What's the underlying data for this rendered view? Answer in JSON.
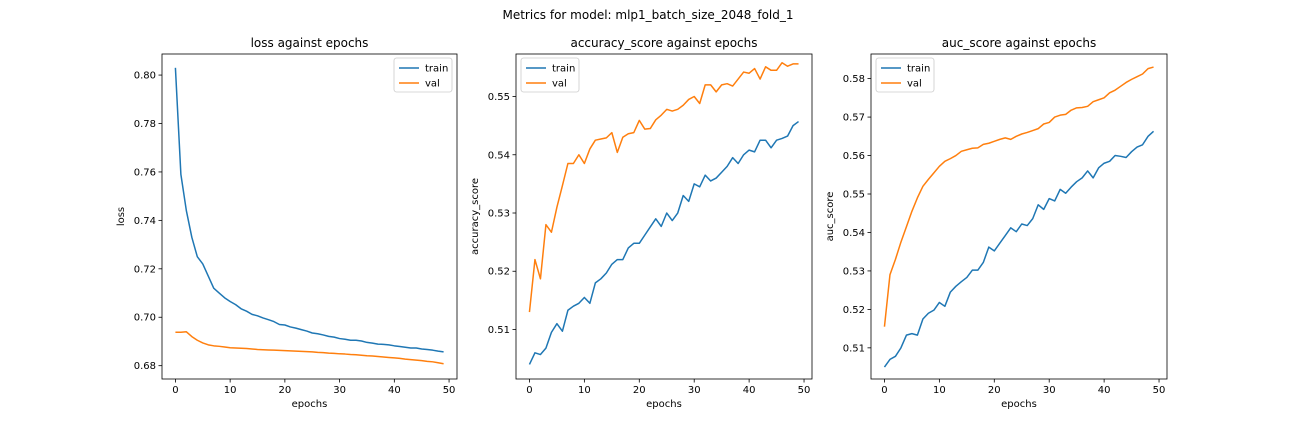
{
  "figure": {
    "suptitle": "Metrics for model: mlp1_batch_size_2048_fold_1"
  },
  "colors": {
    "train": "#1f77b4",
    "val": "#ff7f0e"
  },
  "chart_data": [
    {
      "type": "line",
      "title": "loss against epochs",
      "xlabel": "epochs",
      "ylabel": "loss",
      "xlim": [
        -2.45,
        51.45
      ],
      "ylim": [
        0.6745,
        0.8087
      ],
      "xticks": [
        0,
        10,
        20,
        30,
        40,
        50
      ],
      "xtick_labels": [
        "0",
        "10",
        "20",
        "30",
        "40",
        "50"
      ],
      "yticks": [
        0.68,
        0.7,
        0.72,
        0.74,
        0.76,
        0.78,
        0.8
      ],
      "ytick_labels": [
        "0.68",
        "0.70",
        "0.72",
        "0.74",
        "0.76",
        "0.78",
        "0.80"
      ],
      "legend": "upper-right",
      "x": [
        0,
        1,
        2,
        3,
        4,
        5,
        6,
        7,
        8,
        9,
        10,
        11,
        12,
        13,
        14,
        15,
        16,
        17,
        18,
        19,
        20,
        21,
        22,
        23,
        24,
        25,
        26,
        27,
        28,
        29,
        30,
        31,
        32,
        33,
        34,
        35,
        36,
        37,
        38,
        39,
        40,
        41,
        42,
        43,
        44,
        45,
        46,
        47,
        48,
        49
      ],
      "series": [
        {
          "name": "train",
          "values": [
            0.803,
            0.759,
            0.744,
            0.733,
            0.725,
            0.722,
            0.717,
            0.712,
            0.71,
            0.708,
            0.7065,
            0.7052,
            0.7035,
            0.7025,
            0.7012,
            0.7006,
            0.6997,
            0.699,
            0.6982,
            0.697,
            0.6968,
            0.696,
            0.6955,
            0.6949,
            0.6943,
            0.6935,
            0.6932,
            0.6927,
            0.6921,
            0.6918,
            0.6912,
            0.6909,
            0.6905,
            0.6905,
            0.6902,
            0.6896,
            0.6893,
            0.6889,
            0.6888,
            0.6886,
            0.6882,
            0.6879,
            0.6876,
            0.6873,
            0.6873,
            0.6869,
            0.6867,
            0.6864,
            0.686,
            0.6857
          ]
        },
        {
          "name": "val",
          "values": [
            0.6938,
            0.6938,
            0.694,
            0.692,
            0.6905,
            0.6894,
            0.6886,
            0.6882,
            0.688,
            0.6877,
            0.6874,
            0.6873,
            0.6872,
            0.6871,
            0.6869,
            0.6867,
            0.6866,
            0.6865,
            0.6864,
            0.6863,
            0.6862,
            0.6861,
            0.686,
            0.6859,
            0.6858,
            0.6857,
            0.6855,
            0.6854,
            0.6852,
            0.6851,
            0.6849,
            0.6848,
            0.6846,
            0.6845,
            0.6843,
            0.6841,
            0.684,
            0.6838,
            0.6836,
            0.6834,
            0.6832,
            0.683,
            0.6827,
            0.6825,
            0.6823,
            0.6821,
            0.6818,
            0.6816,
            0.6812,
            0.6808
          ]
        }
      ]
    },
    {
      "type": "line",
      "title": "accuracy_score against epochs",
      "xlabel": "epochs",
      "ylabel": "accuracy_score",
      "xlim": [
        -2.45,
        51.45
      ],
      "ylim": [
        0.5015,
        0.5573
      ],
      "xticks": [
        0,
        10,
        20,
        30,
        40,
        50
      ],
      "xtick_labels": [
        "0",
        "10",
        "20",
        "30",
        "40",
        "50"
      ],
      "yticks": [
        0.51,
        0.52,
        0.53,
        0.54,
        0.55
      ],
      "ytick_labels": [
        "0.51",
        "0.52",
        "0.53",
        "0.54",
        "0.55"
      ],
      "legend": "upper-left",
      "x": [
        0,
        1,
        2,
        3,
        4,
        5,
        6,
        7,
        8,
        9,
        10,
        11,
        12,
        13,
        14,
        15,
        16,
        17,
        18,
        19,
        20,
        21,
        22,
        23,
        24,
        25,
        26,
        27,
        28,
        29,
        30,
        31,
        32,
        33,
        34,
        35,
        36,
        37,
        38,
        39,
        40,
        41,
        42,
        43,
        44,
        45,
        46,
        47,
        48,
        49
      ],
      "series": [
        {
          "name": "train",
          "values": [
            0.504,
            0.506,
            0.5057,
            0.5068,
            0.5095,
            0.511,
            0.5097,
            0.5133,
            0.514,
            0.5145,
            0.5155,
            0.5145,
            0.518,
            0.5187,
            0.5197,
            0.5212,
            0.522,
            0.522,
            0.524,
            0.5248,
            0.5248,
            0.5262,
            0.5276,
            0.529,
            0.5277,
            0.53,
            0.5287,
            0.53,
            0.533,
            0.532,
            0.535,
            0.5345,
            0.5365,
            0.5355,
            0.536,
            0.537,
            0.538,
            0.5395,
            0.5385,
            0.54,
            0.5408,
            0.5405,
            0.5425,
            0.5425,
            0.5412,
            0.5425,
            0.5428,
            0.5432,
            0.545,
            0.5457
          ]
        },
        {
          "name": "val",
          "values": [
            0.513,
            0.522,
            0.5187,
            0.528,
            0.5267,
            0.531,
            0.5347,
            0.5385,
            0.5385,
            0.54,
            0.5385,
            0.541,
            0.5425,
            0.5427,
            0.5429,
            0.5438,
            0.5404,
            0.543,
            0.5436,
            0.5438,
            0.5459,
            0.5444,
            0.5445,
            0.546,
            0.5468,
            0.5478,
            0.5475,
            0.5478,
            0.5485,
            0.5495,
            0.55,
            0.5488,
            0.552,
            0.552,
            0.5508,
            0.552,
            0.5522,
            0.5518,
            0.553,
            0.5542,
            0.554,
            0.5548,
            0.553,
            0.5551,
            0.5545,
            0.5545,
            0.5558,
            0.5552,
            0.5556,
            0.5556
          ]
        }
      ]
    },
    {
      "type": "line",
      "title": "auc_score against epochs",
      "xlabel": "epochs",
      "ylabel": "auc_score",
      "xlim": [
        -2.45,
        51.45
      ],
      "ylim": [
        0.5019,
        0.5864
      ],
      "xticks": [
        0,
        10,
        20,
        30,
        40,
        50
      ],
      "xtick_labels": [
        "0",
        "10",
        "20",
        "30",
        "40",
        "50"
      ],
      "yticks": [
        0.51,
        0.52,
        0.53,
        0.54,
        0.55,
        0.56,
        0.57,
        0.58
      ],
      "ytick_labels": [
        "0.51",
        "0.52",
        "0.53",
        "0.54",
        "0.55",
        "0.56",
        "0.57",
        "0.58"
      ],
      "legend": "upper-left",
      "x": [
        0,
        1,
        2,
        3,
        4,
        5,
        6,
        7,
        8,
        9,
        10,
        11,
        12,
        13,
        14,
        15,
        16,
        17,
        18,
        19,
        20,
        21,
        22,
        23,
        24,
        25,
        26,
        27,
        28,
        29,
        30,
        31,
        32,
        33,
        34,
        35,
        36,
        37,
        38,
        39,
        40,
        41,
        42,
        43,
        44,
        45,
        46,
        47,
        48,
        49
      ],
      "series": [
        {
          "name": "train",
          "values": [
            0.505,
            0.507,
            0.5078,
            0.51,
            0.5133,
            0.5137,
            0.5133,
            0.5175,
            0.519,
            0.5198,
            0.5218,
            0.5208,
            0.5245,
            0.526,
            0.5272,
            0.5283,
            0.5302,
            0.5302,
            0.5322,
            0.5362,
            0.5352,
            0.5372,
            0.5392,
            0.5412,
            0.5402,
            0.5422,
            0.5418,
            0.5436,
            0.5472,
            0.546,
            0.5488,
            0.5482,
            0.5512,
            0.5502,
            0.5518,
            0.5532,
            0.5542,
            0.556,
            0.5542,
            0.5568,
            0.558,
            0.5585,
            0.56,
            0.5598,
            0.5595,
            0.561,
            0.5622,
            0.5628,
            0.565,
            0.5663
          ]
        },
        {
          "name": "val",
          "values": [
            0.5155,
            0.529,
            0.533,
            0.5375,
            0.5415,
            0.5455,
            0.549,
            0.552,
            0.5538,
            0.5555,
            0.5572,
            0.5585,
            0.5592,
            0.56,
            0.5611,
            0.5615,
            0.5619,
            0.562,
            0.5629,
            0.5632,
            0.5637,
            0.5642,
            0.5646,
            0.5642,
            0.565,
            0.5656,
            0.566,
            0.5665,
            0.567,
            0.5682,
            0.5686,
            0.57,
            0.5705,
            0.5707,
            0.5718,
            0.5724,
            0.5725,
            0.5728,
            0.574,
            0.5745,
            0.575,
            0.5763,
            0.577,
            0.578,
            0.579,
            0.5798,
            0.5805,
            0.5812,
            0.5826,
            0.583
          ]
        }
      ]
    }
  ]
}
